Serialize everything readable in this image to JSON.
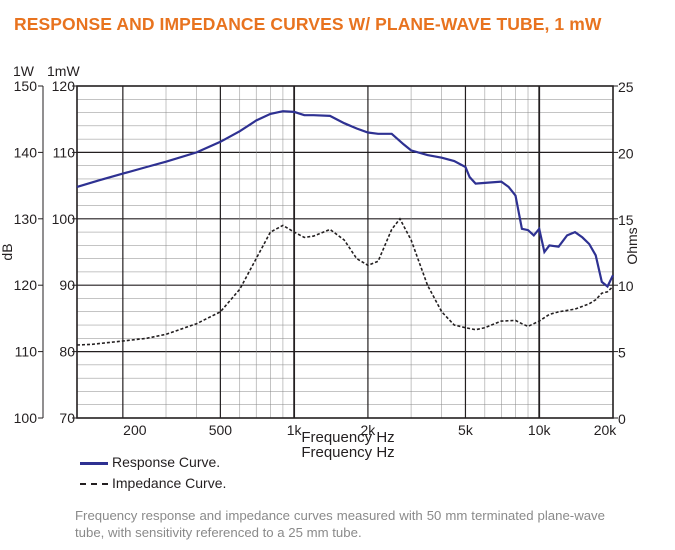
{
  "title": "RESPONSE AND IMPEDANCE CURVES W/ PLANE-WAVE TUBE, 1 mW",
  "colors": {
    "title": "#e8731f",
    "response": "#2e3192",
    "impedance": "#231f20",
    "caption": "#8a8a8a"
  },
  "chart_data": {
    "type": "line",
    "xlabel": "Frequency Hz",
    "x_scale": "log",
    "xlim": [
      130,
      20000
    ],
    "x_ticks": [
      200,
      500,
      1000,
      2000,
      5000,
      10000,
      20000
    ],
    "x_tick_labels": [
      "200",
      "500",
      "1k",
      "2k",
      "5k",
      "10k",
      "20k"
    ],
    "y_left_label": "dB",
    "y_left_unit_1W": "1W",
    "y_left_unit_1mW": "1mW",
    "y_left_1W_ticks": [
      "150",
      "140",
      "130",
      "120",
      "110",
      "100"
    ],
    "y_left_1mW_ticks": [
      "120",
      "110",
      "100",
      "90",
      "80",
      "70"
    ],
    "ylim_1mW": [
      70,
      120
    ],
    "y_right_label": "Ohms",
    "y_right_ticks": [
      "25",
      "20",
      "15",
      "10",
      "5",
      "0"
    ],
    "ylim_right": [
      0,
      25
    ],
    "grid": true,
    "legend_placement": "below",
    "series": [
      {
        "name": "Response Curve.",
        "axis": "left_1mW",
        "style": "solid",
        "x": [
          130,
          160,
          200,
          250,
          300,
          400,
          500,
          600,
          700,
          800,
          900,
          1000,
          1100,
          1200,
          1400,
          1600,
          1800,
          2000,
          2200,
          2500,
          2800,
          3000,
          3500,
          4000,
          4500,
          5000,
          5200,
          5500,
          6000,
          7000,
          7500,
          8000,
          8500,
          9000,
          9500,
          10000,
          10500,
          11000,
          12000,
          13000,
          14000,
          15000,
          16000,
          17000,
          18000,
          19000,
          20000
        ],
        "values": [
          104.8,
          105.8,
          106.8,
          107.8,
          108.6,
          110,
          111.6,
          113.2,
          114.8,
          115.8,
          116.2,
          116.1,
          115.6,
          115.6,
          115.5,
          114.4,
          113.6,
          113,
          112.8,
          112.8,
          111.2,
          110.3,
          109.6,
          109.2,
          108.7,
          107.8,
          106.3,
          105.3,
          105.4,
          105.6,
          104.8,
          103.5,
          98.5,
          98.3,
          97.5,
          98.5,
          95,
          96,
          95.8,
          97.5,
          98,
          97.2,
          96.2,
          94.5,
          90.5,
          89.8,
          91.5
        ]
      },
      {
        "name": "Impedance Curve.",
        "axis": "right_ohms",
        "style": "dashed",
        "x": [
          130,
          150,
          200,
          250,
          300,
          400,
          500,
          600,
          700,
          800,
          900,
          1000,
          1100,
          1200,
          1400,
          1600,
          1800,
          2000,
          2200,
          2500,
          2700,
          3000,
          3500,
          4000,
          4500,
          5000,
          5500,
          6000,
          7000,
          8000,
          8500,
          9000,
          10000,
          11000,
          12000,
          13000,
          14000,
          15000,
          16000,
          17000,
          18000,
          19000,
          20000
        ],
        "values": [
          5.5,
          5.55,
          5.8,
          6.0,
          6.3,
          7.1,
          8.0,
          9.7,
          12.0,
          14.0,
          14.5,
          14.0,
          13.6,
          13.7,
          14.2,
          13.4,
          12.0,
          11.5,
          11.8,
          14.2,
          15.0,
          13.4,
          10.0,
          8.0,
          7.0,
          6.8,
          6.65,
          6.8,
          7.3,
          7.35,
          7.1,
          6.9,
          7.3,
          7.8,
          8.0,
          8.1,
          8.2,
          8.4,
          8.6,
          8.9,
          9.4,
          9.5,
          9.9
        ]
      }
    ]
  },
  "legend": {
    "response": "Response Curve.",
    "impedance": "Impedance Curve."
  },
  "caption": "Frequency response and impedance curves measured with 50 mm terminated plane-wave tube, with sensitivity referenced to a 25 mm tube."
}
